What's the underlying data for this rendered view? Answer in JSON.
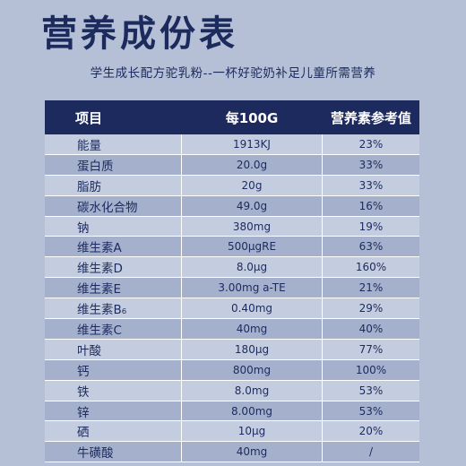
{
  "title": "营养成份表",
  "subtitle": "学生成长配方驼乳粉--一杯好驼奶补足儿童所需营养",
  "table": {
    "headers": [
      "项目",
      "每100G",
      "营养素参考值"
    ],
    "rows": [
      [
        "能量",
        "1913KJ",
        "23%"
      ],
      [
        "蛋白质",
        "20.0g",
        "33%"
      ],
      [
        "脂肪",
        "20g",
        "33%"
      ],
      [
        "碳水化合物",
        "49.0g",
        "16%"
      ],
      [
        "钠",
        "380mg",
        "19%"
      ],
      [
        "维生素A",
        "500μgRE",
        "63%"
      ],
      [
        "维生素D",
        "8.0μg",
        "160%"
      ],
      [
        "维生素E",
        "3.00mg a-TE",
        "21%"
      ],
      [
        "维生素B₆",
        "0.40mg",
        "29%"
      ],
      [
        "维生素C",
        "40mg",
        "40%"
      ],
      [
        "叶酸",
        "180μg",
        "77%"
      ],
      [
        "钙",
        "800mg",
        "100%"
      ],
      [
        "铁",
        "8.0mg",
        "53%"
      ],
      [
        "锌",
        "8.00mg",
        "53%"
      ],
      [
        "硒",
        "10μg",
        "20%"
      ],
      [
        "牛磺酸",
        "40mg",
        "/"
      ]
    ]
  }
}
